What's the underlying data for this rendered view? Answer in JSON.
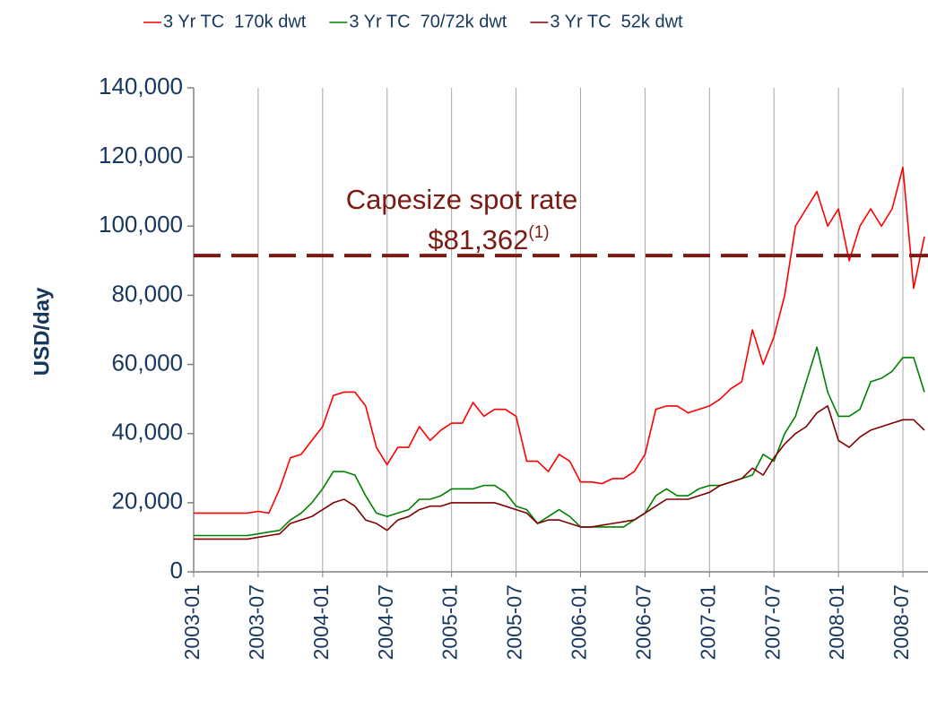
{
  "chart_data": {
    "type": "line",
    "y_label": "USD/day",
    "x": [
      "2003-01",
      "2003-02",
      "2003-03",
      "2003-04",
      "2003-05",
      "2003-06",
      "2003-07",
      "2003-08",
      "2003-09",
      "2003-10",
      "2003-11",
      "2003-12",
      "2004-01",
      "2004-02",
      "2004-03",
      "2004-04",
      "2004-05",
      "2004-06",
      "2004-07",
      "2004-08",
      "2004-09",
      "2004-10",
      "2004-11",
      "2004-12",
      "2005-01",
      "2005-02",
      "2005-03",
      "2005-04",
      "2005-05",
      "2005-06",
      "2005-07",
      "2005-08",
      "2005-09",
      "2005-10",
      "2005-11",
      "2005-12",
      "2006-01",
      "2006-02",
      "2006-03",
      "2006-04",
      "2006-05",
      "2006-06",
      "2006-07",
      "2006-08",
      "2006-09",
      "2006-10",
      "2006-11",
      "2006-12",
      "2007-01",
      "2007-02",
      "2007-03",
      "2007-04",
      "2007-05",
      "2007-06",
      "2007-07",
      "2007-08",
      "2007-09",
      "2007-10",
      "2007-11",
      "2007-12",
      "2008-01",
      "2008-02",
      "2008-03",
      "2008-04",
      "2008-05",
      "2008-06",
      "2008-07",
      "2008-08",
      "2008-09"
    ],
    "xticks": [
      "2003-01",
      "2003-07",
      "2004-01",
      "2004-07",
      "2005-01",
      "2005-07",
      "2006-01",
      "2006-07",
      "2007-01",
      "2007-07",
      "2008-01",
      "2008-07"
    ],
    "series": [
      {
        "name": "3 Yr TC  170k dwt",
        "color": "#ff0000",
        "values": [
          17000,
          17000,
          17000,
          17000,
          17000,
          17000,
          17500,
          17000,
          24000,
          33000,
          34000,
          38000,
          42000,
          51000,
          52000,
          52000,
          48000,
          36000,
          31000,
          36000,
          36000,
          42000,
          38000,
          41000,
          43000,
          43000,
          49000,
          45000,
          47000,
          47000,
          45000,
          32000,
          32000,
          29000,
          34000,
          32000,
          26000,
          26000,
          25500,
          27000,
          27000,
          29000,
          34000,
          47000,
          48000,
          48000,
          46000,
          47000,
          48000,
          50000,
          53000,
          55000,
          70000,
          60000,
          68000,
          80000,
          100000,
          105000,
          110000,
          100000,
          105000,
          90000,
          100000,
          105000,
          100000,
          105000,
          117000,
          82000,
          97000
        ]
      },
      {
        "name": "3 Yr TC  70/72k dwt",
        "color": "#008000",
        "values": [
          10500,
          10500,
          10500,
          10500,
          10500,
          10500,
          11000,
          11500,
          12000,
          15000,
          17000,
          20000,
          24000,
          29000,
          29000,
          28000,
          22000,
          17000,
          16000,
          17000,
          18000,
          21000,
          21000,
          22000,
          24000,
          24000,
          24000,
          25000,
          25000,
          23000,
          19000,
          18000,
          14000,
          16000,
          18000,
          16000,
          13000,
          13000,
          13000,
          13000,
          13000,
          15000,
          17000,
          22000,
          24000,
          22000,
          22000,
          24000,
          25000,
          25000,
          26000,
          27000,
          28000,
          34000,
          32000,
          40000,
          45000,
          55000,
          65000,
          52000,
          45000,
          45000,
          47000,
          55000,
          56000,
          58000,
          62000,
          62000,
          52000
        ]
      },
      {
        "name": "3 Yr TC  52k dwt",
        "color": "#800000",
        "values": [
          9500,
          9500,
          9500,
          9500,
          9500,
          9500,
          10000,
          10500,
          11000,
          14000,
          15000,
          16000,
          18000,
          20000,
          21000,
          19000,
          15000,
          14000,
          12000,
          15000,
          16000,
          18000,
          19000,
          19000,
          20000,
          20000,
          20000,
          20000,
          20000,
          19000,
          18000,
          17000,
          14000,
          15000,
          15000,
          14000,
          13000,
          13000,
          13500,
          14000,
          14500,
          15000,
          17000,
          19000,
          21000,
          21000,
          21000,
          22000,
          23000,
          25000,
          26000,
          27000,
          30000,
          28000,
          33000,
          37000,
          40000,
          42000,
          46000,
          48000,
          38000,
          36000,
          39000,
          41000,
          42000,
          43000,
          44000,
          44000,
          41000
        ]
      }
    ],
    "ylim": [
      0,
      140000
    ],
    "yticks": [
      {
        "value": 0,
        "label": "0"
      },
      {
        "value": 20000,
        "label": "20,000"
      },
      {
        "value": 40000,
        "label": "40,000"
      },
      {
        "value": 60000,
        "label": "60,000"
      },
      {
        "value": 80000,
        "label": "80,000"
      },
      {
        "value": 100000,
        "label": "100,000"
      },
      {
        "value": 120000,
        "label": "120,000"
      },
      {
        "value": 140000,
        "label": "140,000"
      }
    ],
    "reference_line": {
      "value": 91500,
      "color": "#7b1a12"
    },
    "annotation": {
      "line1": "Capesize spot rate",
      "line2": "$81,362",
      "superscript": "(1)"
    },
    "grid": true,
    "legend": "top"
  }
}
